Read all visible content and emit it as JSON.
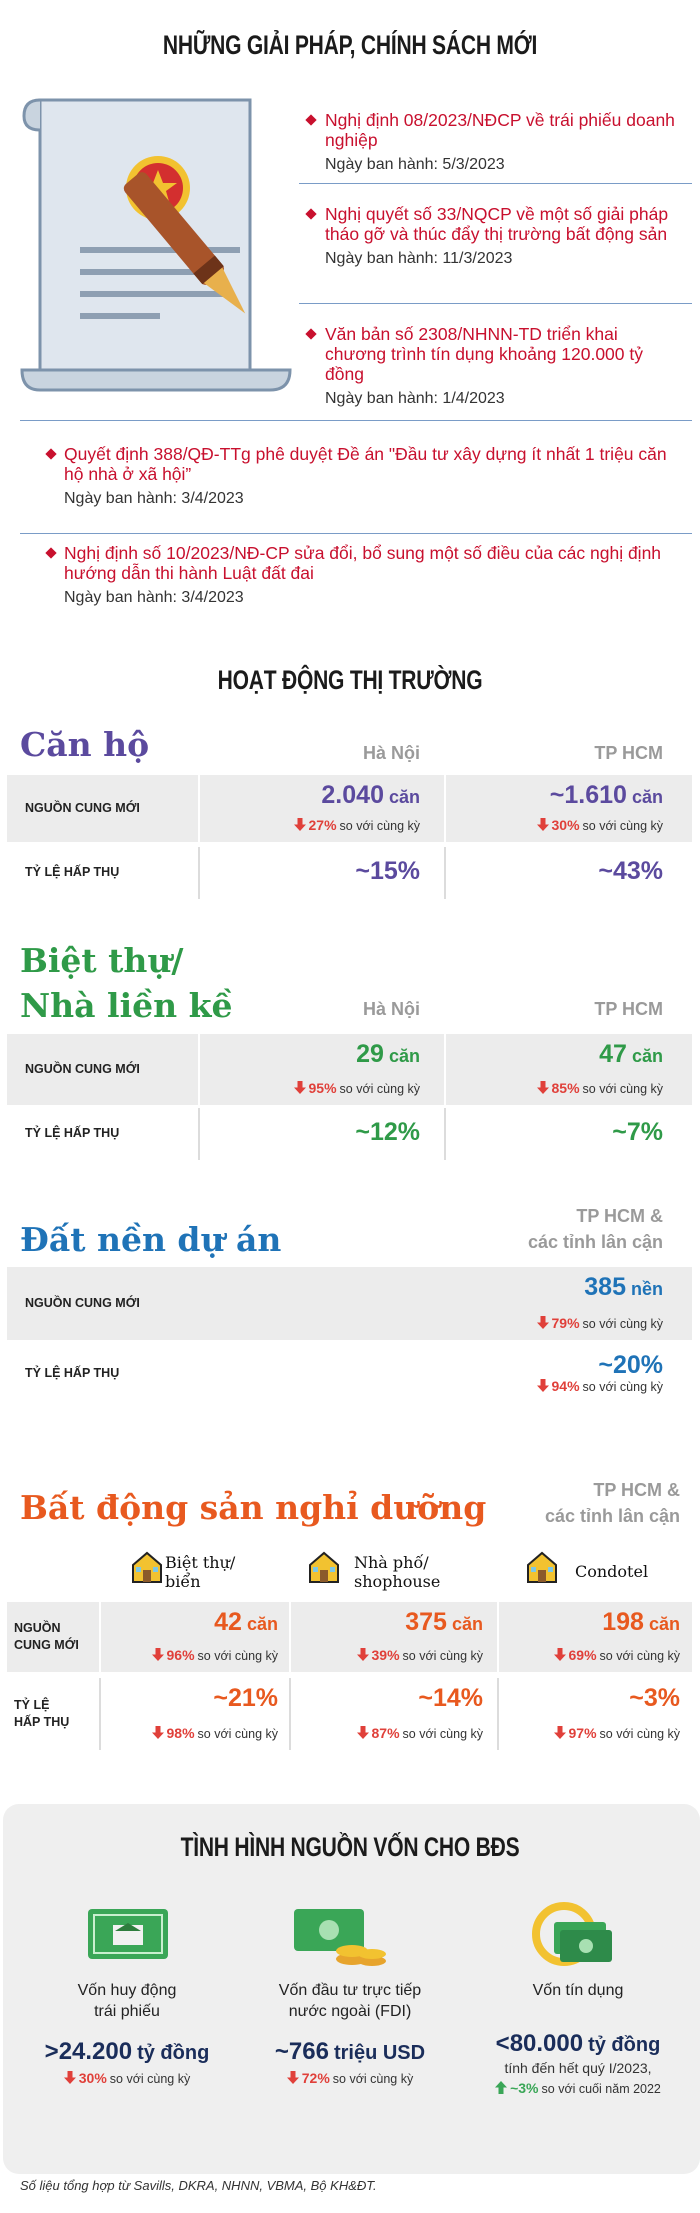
{
  "policies": {
    "title": "NHỮNG GIẢI PHÁP, CHÍNH SÁCH MỚI",
    "items": [
      {
        "title": "Nghị định 08/2023/NĐCP về trái phiếu doanh nghiệp",
        "date": "Ngày ban hành: 5/3/2023"
      },
      {
        "title": "Nghị quyết số 33/NQCP về một số giải pháp tháo gỡ và thúc đẩy thị trường bất động sản",
        "date": "Ngày ban hành: 11/3/2023"
      },
      {
        "title": "Văn bản số 2308/NHNN-TD triển khai chương trình tín dụng khoảng 120.000 tỷ đồng",
        "date": "Ngày ban hành: 1/4/2023"
      },
      {
        "title": "Quyết định 388/QĐ-TTg phê duyệt Đề án \"Đầu tư xây dựng ít nhất 1 triệu căn hộ nhà ở xã hội”",
        "date": "Ngày ban hành: 3/4/2023"
      },
      {
        "title": "Nghị định số 10/2023/NĐ-CP sửa đổi, bổ sung một số điều của các nghị định hướng dẫn thi hành Luật đất đai",
        "date": "Ngày ban hành: 3/4/2023"
      }
    ]
  },
  "market": {
    "title": "HOẠT ĐỘNG THỊ TRƯỜNG",
    "sections": [
      {
        "title": "Căn hộ",
        "columns": [
          "Hà Nội",
          "TP HCM"
        ],
        "rows": [
          {
            "label": "NGUỒN CUNG MỚI",
            "cells": [
              {
                "value": "2.040",
                "unit": "căn",
                "change": "27%",
                "note": "so với cùng kỳ"
              },
              {
                "value": "~1.610",
                "unit": "căn",
                "change": "30%",
                "note": "so với cùng kỳ"
              }
            ]
          },
          {
            "label": "TỶ LỆ HẤP THỤ",
            "cells": [
              {
                "value": "~15%"
              },
              {
                "value": "~43%"
              }
            ]
          }
        ]
      },
      {
        "title": "Biệt thự/\nNhà liền kề",
        "columns": [
          "Hà Nội",
          "TP HCM"
        ],
        "rows": [
          {
            "label": "NGUỒN CUNG MỚI",
            "cells": [
              {
                "value": "29",
                "unit": "căn",
                "change": "95%",
                "note": "so với cùng kỳ"
              },
              {
                "value": "47",
                "unit": "căn",
                "change": "85%",
                "note": "so với cùng kỳ"
              }
            ]
          },
          {
            "label": "TỶ LỆ HẤP THỤ",
            "cells": [
              {
                "value": "~12%"
              },
              {
                "value": "~7%"
              }
            ]
          }
        ]
      },
      {
        "title": "Đất nền dự án",
        "columns": [
          "TP HCM &\ncác tỉnh lân cận"
        ],
        "rows": [
          {
            "label": "NGUỒN CUNG MỚI",
            "cells": [
              {
                "value": "385",
                "unit": "nền",
                "change": "79%",
                "note": "so với cùng kỳ"
              }
            ]
          },
          {
            "label": "TỶ LỆ HẤP THỤ",
            "cells": [
              {
                "value": "~20%",
                "change": "94%",
                "note": "so với cùng kỳ"
              }
            ]
          }
        ]
      },
      {
        "title": "Bất động sản nghỉ dưỡng",
        "columns": [
          "TP HCM &\ncác tỉnh lân cận"
        ],
        "categories": [
          "Biệt thự/\nbiển",
          "Nhà phố/\nshophouse",
          "Condotel"
        ],
        "rows": [
          {
            "label": "NGUỒN\nCUNG MỚI",
            "cells": [
              {
                "value": "42",
                "unit": "căn",
                "change": "96%",
                "note": "so với cùng kỳ"
              },
              {
                "value": "375",
                "unit": "căn",
                "change": "39%",
                "note": "so với cùng kỳ"
              },
              {
                "value": "198",
                "unit": "căn",
                "change": "69%",
                "note": "so với cùng kỳ"
              }
            ]
          },
          {
            "label": "TỶ LỆ\nHẤP THỤ",
            "cells": [
              {
                "value": "~21%",
                "change": "98%",
                "note": "so với cùng kỳ"
              },
              {
                "value": "~14%",
                "change": "87%",
                "note": "so với cùng kỳ"
              },
              {
                "value": "~3%",
                "change": "97%",
                "note": "so với cùng kỳ"
              }
            ]
          }
        ]
      }
    ]
  },
  "funding": {
    "title": "TÌNH HÌNH NGUỒN VỐN CHO BĐS",
    "items": [
      {
        "label": "Vốn huy động\ntrái phiếu",
        "value": ">24.200",
        "unit": "tỷ đồng",
        "change": "30%",
        "note": "so với cùng kỳ"
      },
      {
        "label": "Vốn đầu tư trực tiếp\nnước ngoài (FDI)",
        "value": "~766",
        "unit": "triệu USD",
        "change": "72%",
        "note": "so với cùng kỳ"
      },
      {
        "label": "Vốn tín dụng",
        "value": "<80.000",
        "unit": "tỷ đồng",
        "period": "tính đến hết quý I/2023,",
        "change": "~3%",
        "note": "so với cuối năm 2022"
      }
    ]
  },
  "footer": "Số liệu tổng hợp từ Savills, DKRA, NHNN, VBMA, Bộ KH&ĐT."
}
